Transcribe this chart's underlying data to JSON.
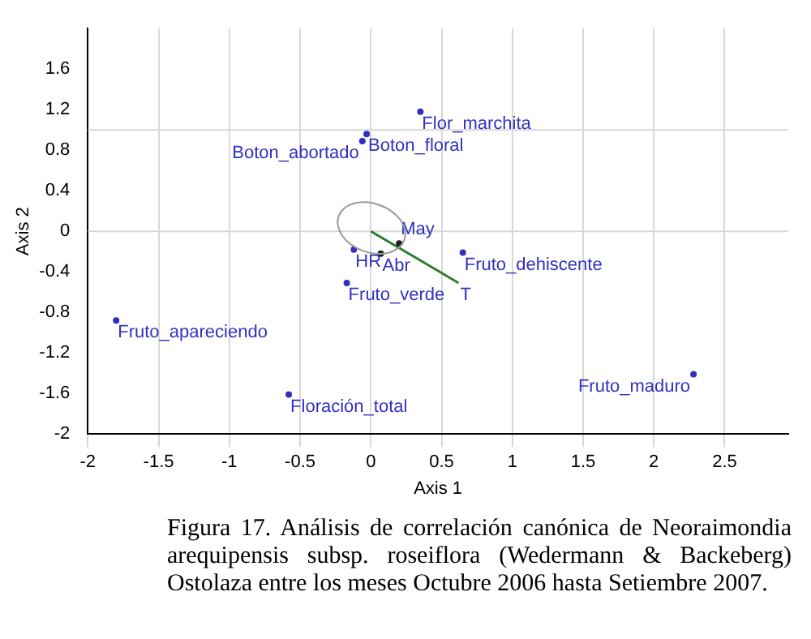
{
  "chart_data": {
    "type": "scatter",
    "xlabel": "Axis 1",
    "ylabel": "Axis 2",
    "xlim": [
      -2,
      2.95
    ],
    "ylim": [
      -2,
      2.0
    ],
    "xticks": [
      -2,
      -1.5,
      -1,
      -0.5,
      0,
      0.5,
      1,
      1.5,
      2,
      2.5
    ],
    "yticks": [
      -2,
      -1.6,
      -1.2,
      -0.8,
      -0.4,
      0,
      0.4,
      0.8,
      1.2,
      1.6
    ],
    "grid": "x",
    "marker": "circle",
    "legend": false,
    "series": [
      {
        "color": "#3030c0",
        "x": [
          0.35,
          -0.03,
          -0.06,
          0.65,
          -0.17,
          -1.8,
          -0.58,
          2.28,
          -0.12
        ],
        "values": [
          1.18,
          0.96,
          0.89,
          -0.21,
          -0.51,
          -0.88,
          -1.61,
          -1.41,
          -0.18
        ]
      },
      {
        "color": "#202020",
        "x": [
          0.07,
          0.2
        ],
        "values": [
          -0.22,
          -0.12
        ]
      },
      {
        "type": "line",
        "marker": "none",
        "color": "#2e7d32",
        "x": [
          0,
          0.62
        ],
        "values": [
          0,
          -0.51
        ]
      }
    ],
    "ref_lines": [
      {
        "axis": "y",
        "value": 0,
        "color": "#d8d8d8"
      },
      {
        "axis": "y",
        "value": 1,
        "color": "#d8d8d8"
      }
    ],
    "annotations": [
      {
        "text": "Flor_marchita",
        "x": 0.35,
        "y": 1.18
      },
      {
        "text": "Boton_floral",
        "x": -0.03,
        "y": 0.96
      },
      {
        "text": "Boton_abortado",
        "x": -0.06,
        "y": 0.89
      },
      {
        "text": "Fruto_dehiscente",
        "x": 0.65,
        "y": -0.21
      },
      {
        "text": "Fruto_verde",
        "x": -0.17,
        "y": -0.51
      },
      {
        "text": "Fruto_apareciendo",
        "x": -1.8,
        "y": -0.88
      },
      {
        "text": "Floración_total",
        "x": -0.58,
        "y": -1.61
      },
      {
        "text": "Fruto_maduro",
        "x": 2.28,
        "y": -1.41
      },
      {
        "text": "HR",
        "x": -0.12,
        "y": -0.18
      },
      {
        "text": "Abr",
        "x": 0.07,
        "y": -0.22
      },
      {
        "text": "May",
        "x": 0.2,
        "y": -0.12
      },
      {
        "text": "T",
        "x": 0.62,
        "y": -0.51
      },
      "Figura 17. Análisis de correlación canónica de Neoraimondia arequipensis subsp. roseiflora (Wedermann & Backeberg) Ostolaza entre los meses Octubre 2006 hasta Setiembre 2007."
    ]
  }
}
